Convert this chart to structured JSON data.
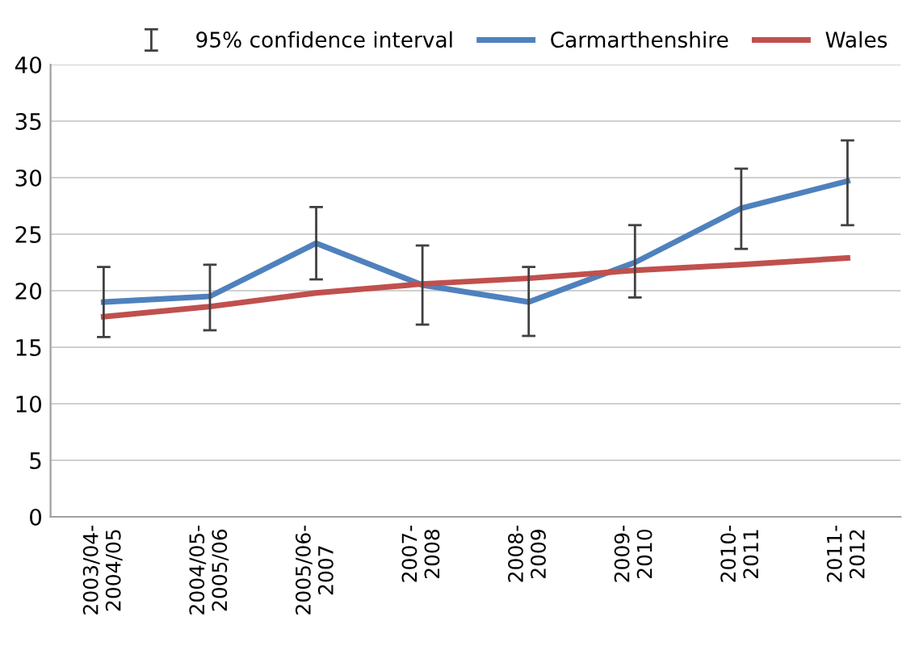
{
  "chart_data": {
    "type": "line",
    "categories": [
      "2003/04-\n2004/05",
      "2004/05-\n2005/06",
      "2005/06-\n2007",
      "2007-\n2008",
      "2008-\n2009",
      "2009-\n2010",
      "2010-\n2011",
      "2011-\n2012"
    ],
    "series": [
      {
        "name": "Carmarthenshire",
        "color": "#4f81bd",
        "values": [
          19.0,
          19.5,
          24.2,
          20.5,
          19.0,
          22.5,
          27.3,
          29.7
        ],
        "errors": [
          [
            15.9,
            22.1
          ],
          [
            16.5,
            22.3
          ],
          [
            21.0,
            27.4
          ],
          [
            17.0,
            24.0
          ],
          [
            16.0,
            22.1
          ],
          [
            19.4,
            25.8
          ],
          [
            23.7,
            30.8
          ],
          [
            25.8,
            33.3
          ]
        ]
      },
      {
        "name": "Wales",
        "color": "#c0504d",
        "values": [
          17.7,
          18.6,
          19.8,
          20.6,
          21.1,
          21.8,
          22.3,
          22.9
        ]
      }
    ],
    "annotations": [
      "95% confidence interval"
    ],
    "ylim": [
      0,
      40
    ],
    "yticks": [
      0,
      5,
      10,
      15,
      20,
      25,
      30,
      35,
      40
    ],
    "grid": "y",
    "legend": "top",
    "marker": "none",
    "line_style": "solid"
  }
}
